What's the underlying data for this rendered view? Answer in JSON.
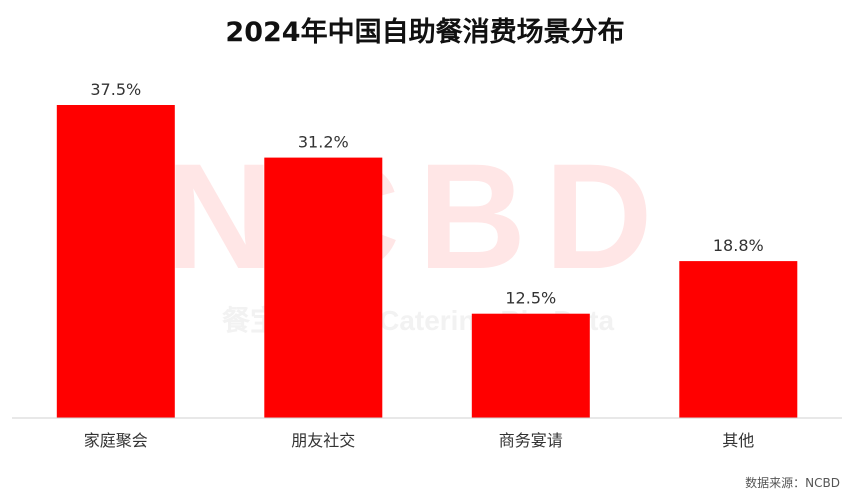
{
  "chart_data": {
    "type": "bar",
    "title": "2024年中国自助餐消费场景分布",
    "categories": [
      "家庭聚会",
      "朋友社交",
      "商务宴请",
      "其他"
    ],
    "values": [
      37.5,
      31.2,
      12.5,
      18.8
    ],
    "value_labels": [
      "37.5%",
      "31.2%",
      "12.5%",
      "18.8%"
    ],
    "ylim": [
      0,
      40
    ],
    "grid": false,
    "legend": "none",
    "bar_color": "#ff0000",
    "source": "数据来源：NCBD"
  },
  "watermark": {
    "main": "NCBD",
    "sub": "餐宝典 New Catering Big Data"
  }
}
